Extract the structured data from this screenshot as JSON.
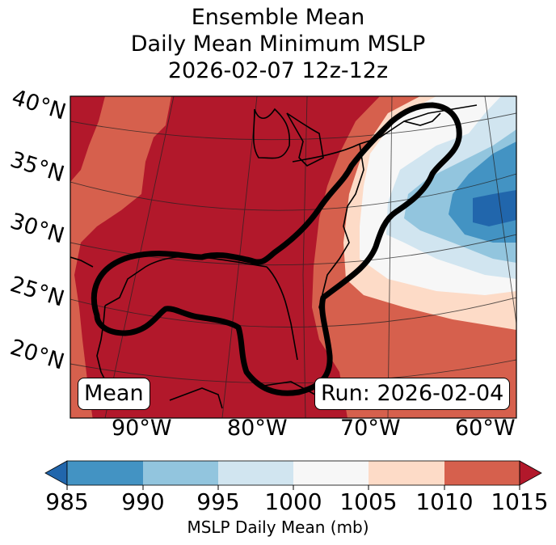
{
  "title": {
    "line1": "Ensemble Mean",
    "line2": "Daily Mean Minimum MSLP",
    "line3": "2026-02-07 12z-12z"
  },
  "map": {
    "lat_labels": [
      "40°N",
      "35°N",
      "30°N",
      "25°N",
      "20°N"
    ],
    "lon_labels": [
      "90°W",
      "80°W",
      "70°W",
      "60°W"
    ],
    "mean_label": "Mean",
    "run_label": "Run: 2026-02-04",
    "outline_description": "Thick black contour enclosing Gulf of Mexico and US East Coast"
  },
  "colorbar": {
    "label": "MSLP Daily Mean (mb)",
    "ticks": [
      "985",
      "990",
      "995",
      "1000",
      "1005",
      "1010",
      "1015"
    ],
    "bins": [
      {
        "range": "<985",
        "color": "#2166ac"
      },
      {
        "range": "985-990",
        "color": "#4393c3"
      },
      {
        "range": "990-995",
        "color": "#92c5de"
      },
      {
        "range": "995-1000",
        "color": "#d1e5f0"
      },
      {
        "range": "1000-1005",
        "color": "#f7f7f7"
      },
      {
        "range": "1005-1010",
        "color": "#fddbc7"
      },
      {
        "range": "1010-1015",
        "color": "#d6604d"
      },
      {
        "range": ">1015",
        "color": "#b2182b"
      }
    ],
    "extend": "both"
  }
}
